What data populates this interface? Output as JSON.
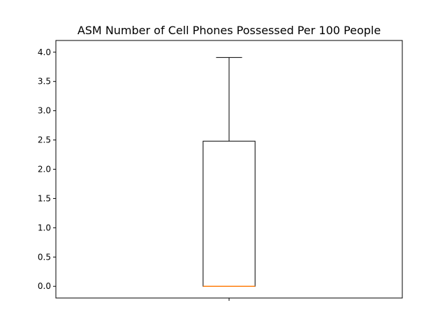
{
  "chart_data": {
    "type": "box",
    "title": "ASM Number of Cell Phones Possessed Per 100 People",
    "xlabel": "",
    "ylabel": "",
    "ylim": [
      -0.2,
      4.2
    ],
    "yticks": [
      0.0,
      0.5,
      1.0,
      1.5,
      2.0,
      2.5,
      3.0,
      3.5,
      4.0
    ],
    "ytick_labels": [
      "0.0",
      "0.5",
      "1.0",
      "1.5",
      "2.0",
      "2.5",
      "3.0",
      "3.5",
      "4.0"
    ],
    "categories": [
      ""
    ],
    "boxes": [
      {
        "whisker_low": 0.0,
        "q1": 0.0,
        "median": 0.0,
        "q3": 2.48,
        "whisker_high": 3.91
      }
    ],
    "grid": false,
    "colors": {
      "box": "#000000",
      "median": "#ff7f0e",
      "whisker": "#000000"
    }
  }
}
